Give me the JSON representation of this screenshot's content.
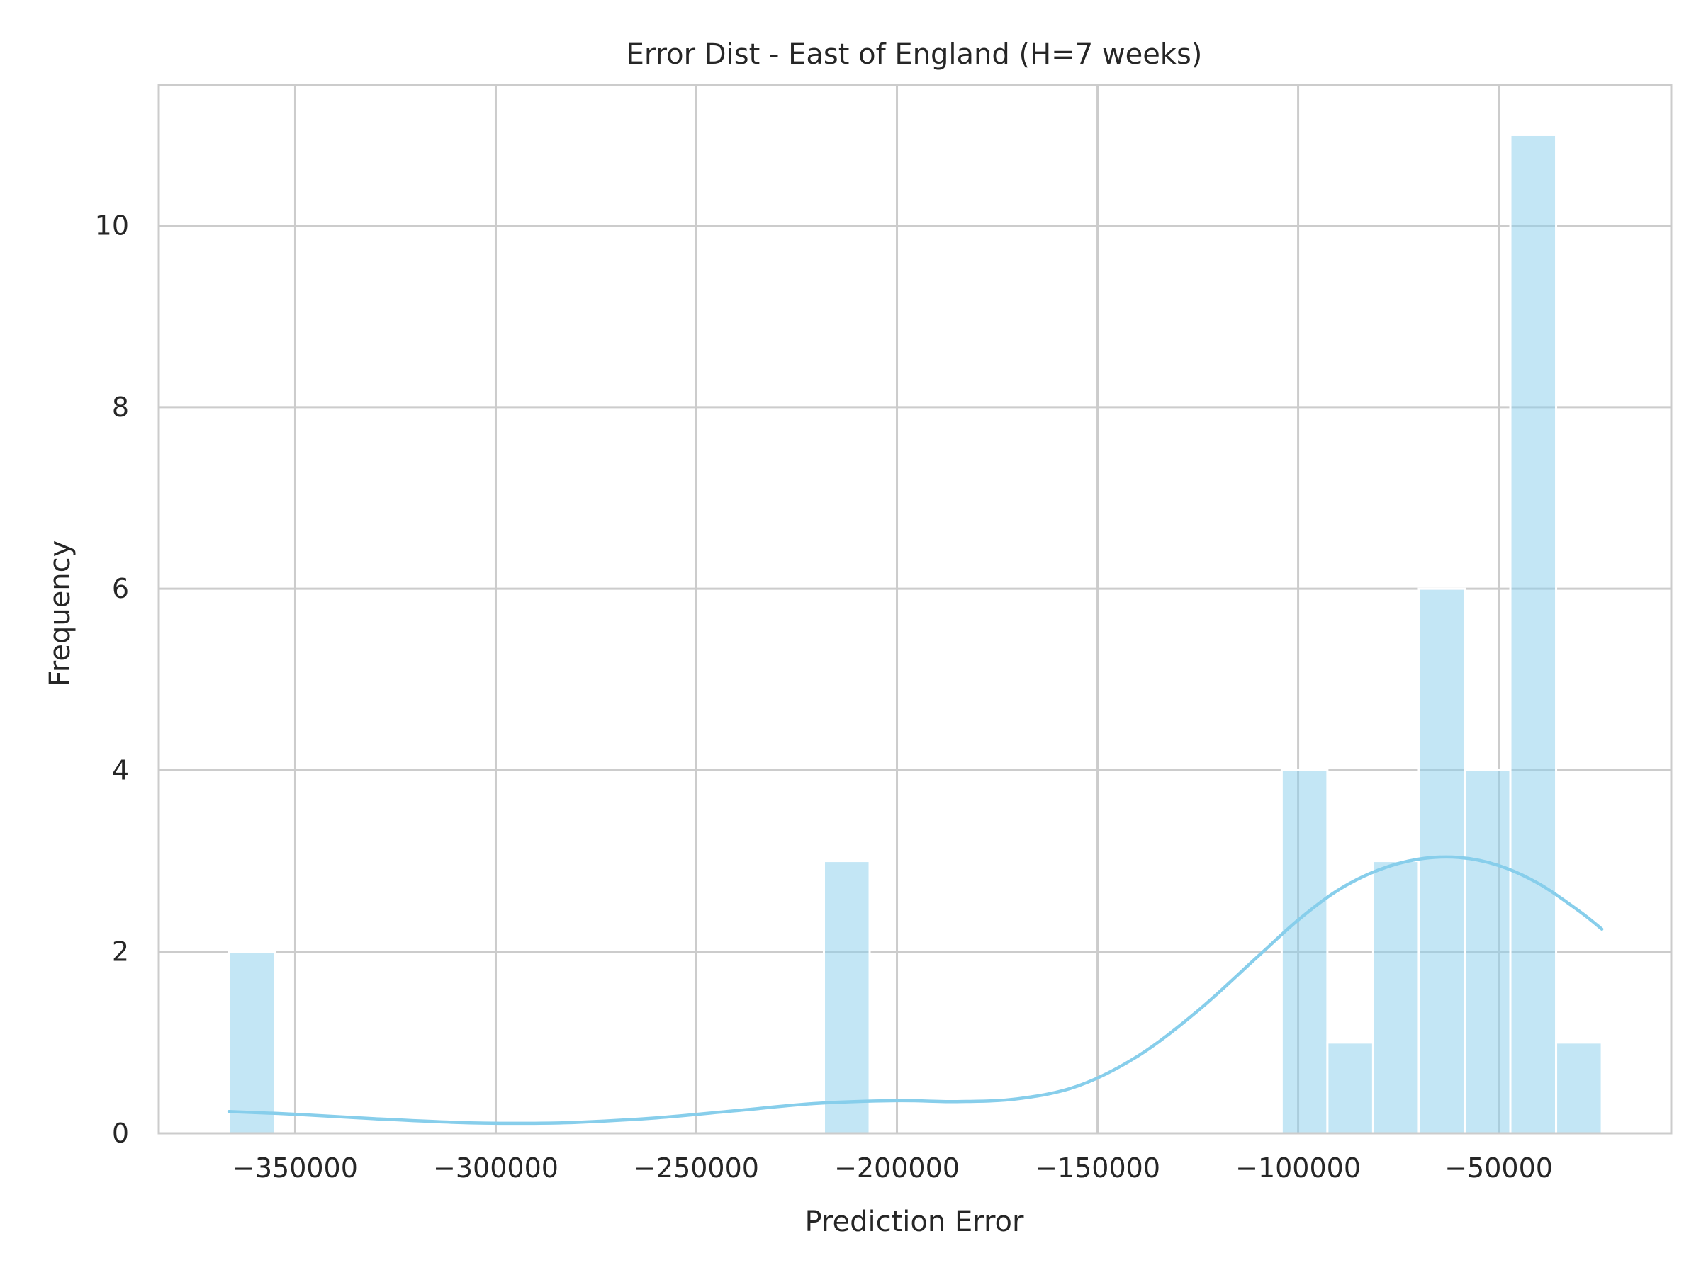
{
  "chart_data": {
    "type": "bar",
    "subtype": "histogram-with-kde",
    "title": "Error Dist - East of England (H=7 weeks)",
    "xlabel": "Prediction Error",
    "ylabel": "Frequency",
    "xlim": [
      -384000,
      -7000
    ],
    "ylim": [
      0,
      11.55
    ],
    "xticks": [
      -350000,
      -300000,
      -250000,
      -200000,
      -150000,
      -100000,
      -50000
    ],
    "xtick_labels": [
      "−350000",
      "−300000",
      "−250000",
      "−200000",
      "−150000",
      "−100000",
      "−50000"
    ],
    "yticks": [
      0,
      2,
      4,
      6,
      8,
      10
    ],
    "ytick_labels": [
      "0",
      "2",
      "4",
      "6",
      "8",
      "10"
    ],
    "grid": true,
    "bar_color": "#87CEEB",
    "bins": [
      {
        "x0": -366500,
        "x1": -355100,
        "count": 2
      },
      {
        "x0": -218200,
        "x1": -206800,
        "count": 3
      },
      {
        "x0": -104100,
        "x1": -92700,
        "count": 4
      },
      {
        "x0": -92700,
        "x1": -81300,
        "count": 1
      },
      {
        "x0": -81300,
        "x1": -69900,
        "count": 3
      },
      {
        "x0": -69900,
        "x1": -58500,
        "count": 6
      },
      {
        "x0": -58500,
        "x1": -47100,
        "count": 4
      },
      {
        "x0": -47100,
        "x1": -35700,
        "count": 11
      },
      {
        "x0": -35700,
        "x1": -24300,
        "count": 1
      }
    ],
    "kde": {
      "x": [
        -366500,
        -350000,
        -330000,
        -310000,
        -295000,
        -280000,
        -260000,
        -240000,
        -220000,
        -200000,
        -185000,
        -170000,
        -155000,
        -140000,
        -125000,
        -110000,
        -100000,
        -90000,
        -80000,
        -70000,
        -60000,
        -50000,
        -40000,
        -30000,
        -24300
      ],
      "y": [
        0.24,
        0.21,
        0.16,
        0.12,
        0.11,
        0.12,
        0.17,
        0.25,
        0.33,
        0.36,
        0.35,
        0.38,
        0.52,
        0.85,
        1.35,
        1.95,
        2.35,
        2.68,
        2.9,
        3.02,
        3.04,
        2.95,
        2.75,
        2.45,
        2.25
      ]
    }
  }
}
